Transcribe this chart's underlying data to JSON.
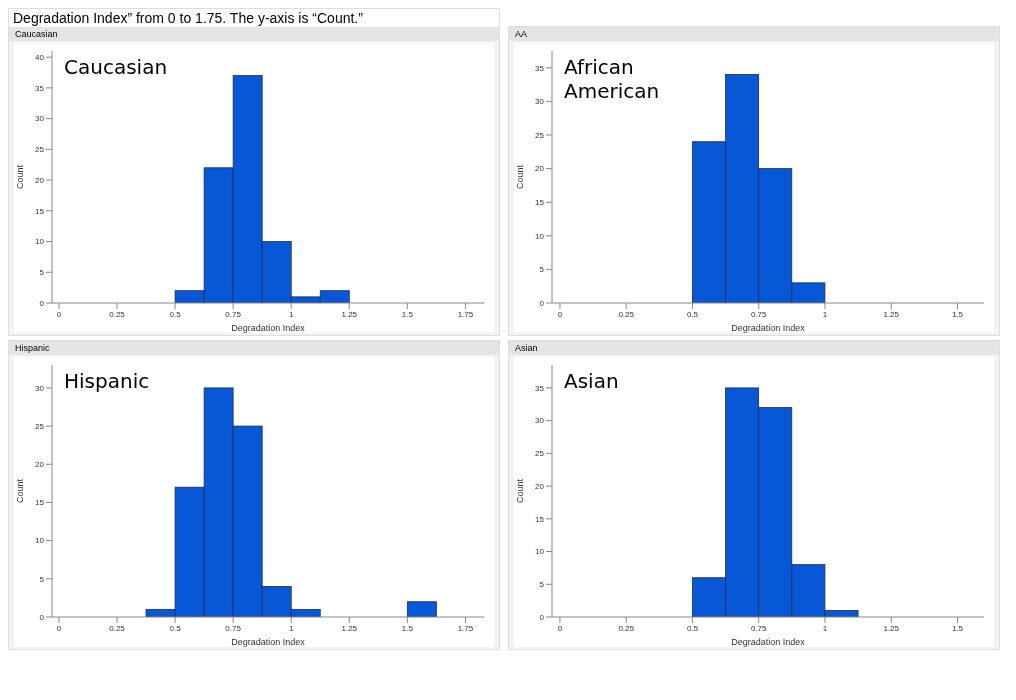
{
  "chart_data": [
    {
      "type": "histogram",
      "title": "Caucasian",
      "xlabel": "Degradation Index",
      "ylabel": "Count",
      "annotations": [
        "Caucasian",
        "Degradation Index” from 0 to 1.75. The y-axis is “Count.”"
      ],
      "bins": [
        0.5,
        0.625,
        0.75,
        0.875,
        1.0,
        1.125,
        1.25
      ],
      "values": [
        2,
        22,
        37,
        10,
        1,
        2
      ],
      "color": "#0757d6",
      "xlim": [
        -0.03,
        1.83
      ],
      "xticks": [
        0,
        0.25,
        0.5,
        0.75,
        1,
        1.25,
        1.5,
        1.75
      ],
      "ylim": [
        0,
        41
      ],
      "yticks": [
        0,
        5,
        10,
        15,
        20,
        25,
        30,
        35,
        40
      ],
      "grid": false
    },
    {
      "type": "histogram",
      "title": "AA",
      "xlabel": "Degradation Index",
      "ylabel": "Count",
      "annotations": [
        "African American"
      ],
      "bins": [
        0.5,
        0.625,
        0.75,
        0.875,
        1.0
      ],
      "values": [
        24,
        34,
        20,
        3
      ],
      "color": "#0757d6",
      "xlim": [
        -0.03,
        1.6
      ],
      "xticks": [
        0,
        0.25,
        0.5,
        0.75,
        1,
        1.25,
        1.5
      ],
      "ylim": [
        0,
        37.5
      ],
      "yticks": [
        0,
        5,
        10,
        15,
        20,
        25,
        30,
        35
      ],
      "grid": false
    },
    {
      "type": "histogram",
      "title": "Hispanic",
      "xlabel": "Degradation Index",
      "ylabel": "Count",
      "annotations": [
        "Hispanic"
      ],
      "bins": [
        0.375,
        0.5,
        0.625,
        0.75,
        0.875,
        1.0,
        1.125,
        1.25,
        1.375,
        1.5,
        1.625
      ],
      "values": [
        1,
        17,
        30,
        25,
        4,
        1,
        0,
        0,
        0,
        2
      ],
      "color": "#0757d6",
      "xlim": [
        -0.03,
        1.83
      ],
      "xticks": [
        0,
        0.25,
        0.5,
        0.75,
        1,
        1.25,
        1.5,
        1.75
      ],
      "ylim": [
        0,
        33
      ],
      "yticks": [
        0,
        5,
        10,
        15,
        20,
        25,
        30
      ],
      "grid": false
    },
    {
      "type": "histogram",
      "title": "Asian",
      "xlabel": "Degradation Index",
      "ylabel": "Count",
      "annotations": [
        "Asian"
      ],
      "bins": [
        0.5,
        0.625,
        0.75,
        0.875,
        1.0,
        1.125
      ],
      "values": [
        6,
        35,
        32,
        8,
        1
      ],
      "color": "#0757d6",
      "xlim": [
        -0.03,
        1.6
      ],
      "xticks": [
        0,
        0.25,
        0.5,
        0.75,
        1,
        1.25,
        1.5
      ],
      "ylim": [
        0,
        38.5
      ],
      "yticks": [
        0,
        5,
        10,
        15,
        20,
        25,
        30,
        35
      ],
      "grid": false
    }
  ]
}
